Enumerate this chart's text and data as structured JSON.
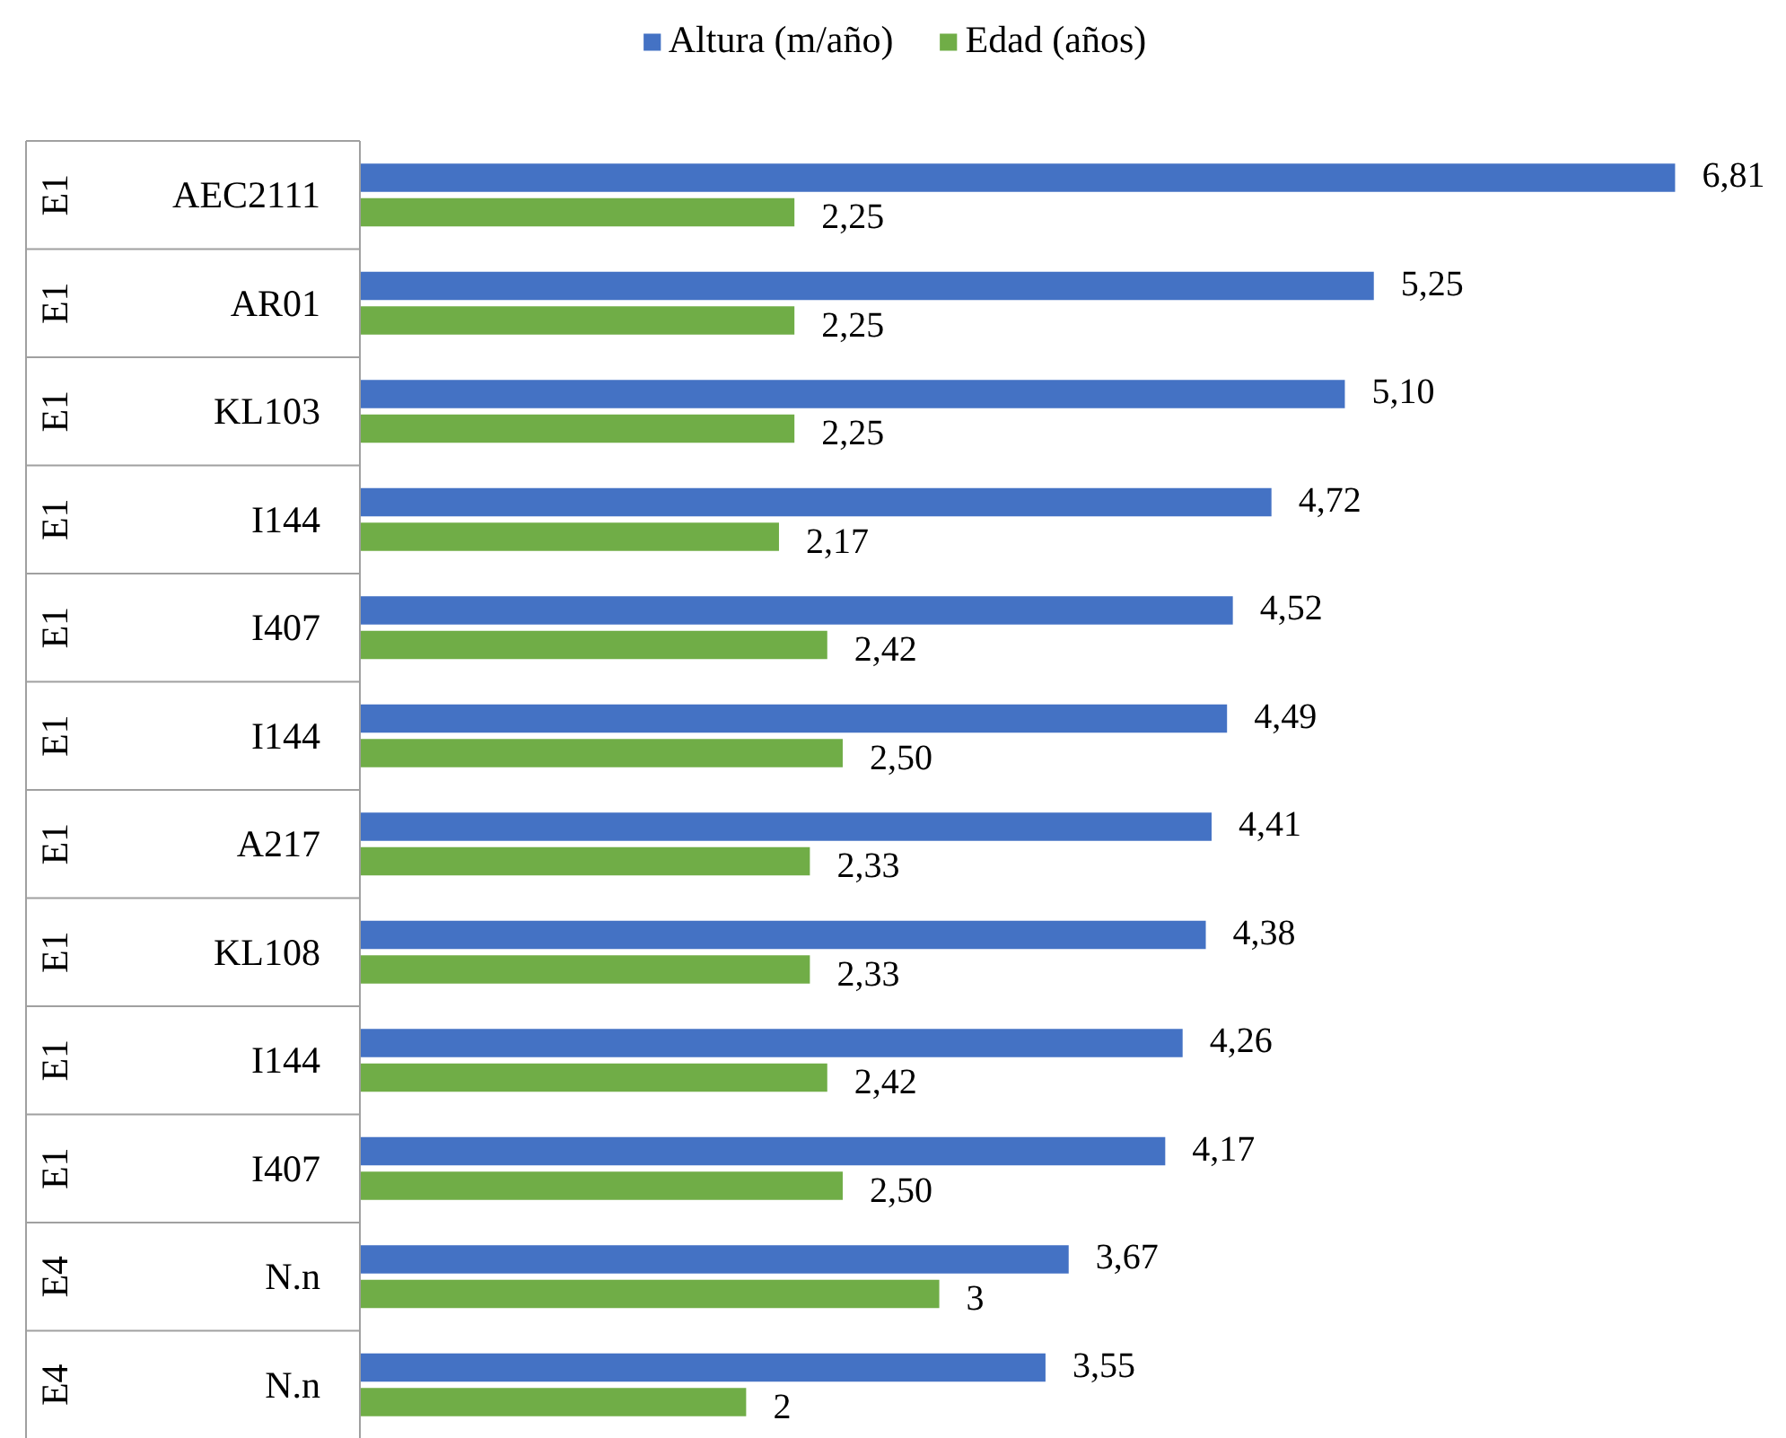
{
  "chart_data": {
    "type": "bar",
    "orientation": "horizontal",
    "legend": "top",
    "grid": false,
    "categories": [
      "AEC2111",
      "AR01",
      "KL103",
      "I144",
      "I407",
      "I144",
      "A217",
      "KL108",
      "I144",
      "I407",
      "N.n",
      "N.n"
    ],
    "annotations": [
      "E1",
      "E1",
      "E1",
      "E1",
      "E1",
      "E1",
      "E1",
      "E1",
      "E1",
      "E1",
      "E4",
      "E4"
    ],
    "series": [
      {
        "name": "Altura (m/año)",
        "color": "#4472c4",
        "values": [
          6.81,
          5.25,
          5.1,
          4.72,
          4.52,
          4.49,
          4.41,
          4.38,
          4.26,
          4.17,
          3.67,
          3.55
        ],
        "value_labels": [
          "6,81",
          "5,25",
          "5,10",
          "4,72",
          "4,52",
          "4,49",
          "4,41",
          "4,38",
          "4,26",
          "4,17",
          "3,67",
          "3,55"
        ]
      },
      {
        "name": "Edad (años)",
        "color": "#70ad47",
        "values": [
          2.25,
          2.25,
          2.25,
          2.17,
          2.42,
          2.5,
          2.33,
          2.33,
          2.42,
          2.5,
          3,
          2
        ],
        "value_labels": [
          "2,25",
          "2,25",
          "2,25",
          "2,17",
          "2,42",
          "2,50",
          "2,33",
          "2,33",
          "2,42",
          "2,50",
          "3",
          "2"
        ]
      }
    ]
  }
}
